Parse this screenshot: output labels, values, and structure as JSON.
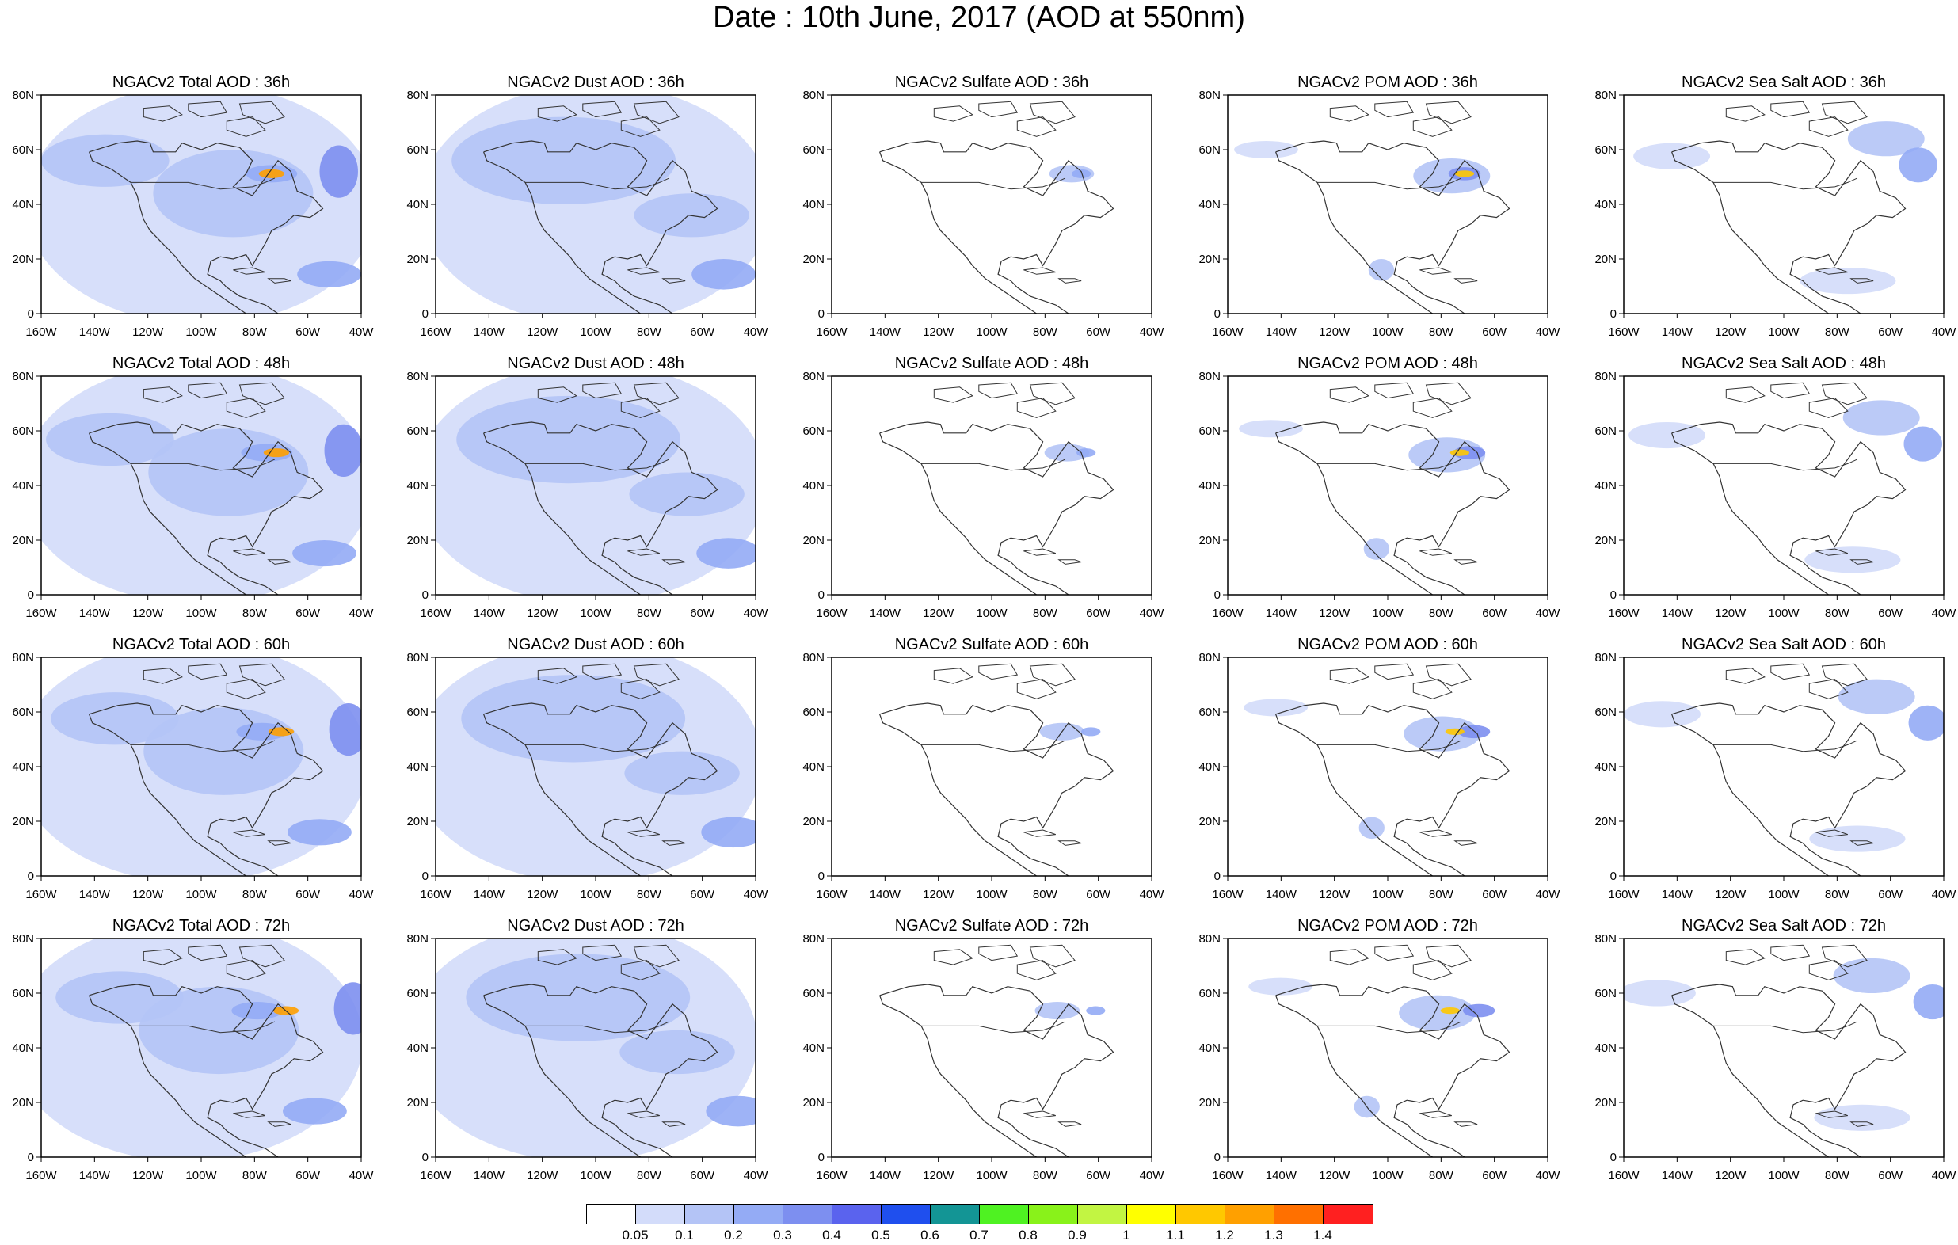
{
  "page": {
    "title": "Date : 10th June, 2017 (AOD at 550nm)"
  },
  "panels": {
    "rows": [
      {
        "cells": [
          {
            "title": "NGACv2 Total AOD : 36h"
          },
          {
            "title": "NGACv2 Dust AOD : 36h"
          },
          {
            "title": "NGACv2 Sulfate AOD : 36h"
          },
          {
            "title": "NGACv2 POM AOD : 36h"
          },
          {
            "title": "NGACv2 Sea Salt AOD : 36h"
          }
        ]
      },
      {
        "cells": [
          {
            "title": "NGACv2 Total AOD : 48h"
          },
          {
            "title": "NGACv2 Dust AOD : 48h"
          },
          {
            "title": "NGACv2 Sulfate AOD : 48h"
          },
          {
            "title": "NGACv2 POM AOD : 48h"
          },
          {
            "title": "NGACv2 Sea Salt AOD : 48h"
          }
        ]
      },
      {
        "cells": [
          {
            "title": "NGACv2 Total AOD : 60h"
          },
          {
            "title": "NGACv2 Dust AOD : 60h"
          },
          {
            "title": "NGACv2 Sulfate AOD : 60h"
          },
          {
            "title": "NGACv2 POM AOD : 60h"
          },
          {
            "title": "NGACv2 Sea Salt AOD : 60h"
          }
        ]
      },
      {
        "cells": [
          {
            "title": "NGACv2 Total AOD : 72h"
          },
          {
            "title": "NGACv2 Dust AOD : 72h"
          },
          {
            "title": "NGACv2 Sulfate AOD : 72h"
          },
          {
            "title": "NGACv2 POM AOD : 72h"
          },
          {
            "title": "NGACv2 Sea Salt  AOD : 72h"
          }
        ]
      }
    ],
    "lat_ticks": [
      "80N",
      "60N",
      "40N",
      "20N",
      "0"
    ],
    "lon_ticks": [
      "160W",
      "140W",
      "120W",
      "100W",
      "80W",
      "60W",
      "40W"
    ]
  },
  "colorbar": {
    "colors": [
      "#ffffff",
      "#d3dcfa",
      "#b4c4f6",
      "#94abf5",
      "#7d8ff0",
      "#5a63ee",
      "#1f4fee",
      "#139595",
      "#4ff222",
      "#89f21a",
      "#c2f542",
      "#ffff00",
      "#ffc800",
      "#ffa000",
      "#ff7000",
      "#ff2020"
    ],
    "labels": [
      "0.05",
      "0.1",
      "0.2",
      "0.3",
      "0.4",
      "0.5",
      "0.6",
      "0.7",
      "0.8",
      "0.9",
      "1",
      "1.1",
      "1.2",
      "1.3",
      "1.4"
    ]
  }
}
